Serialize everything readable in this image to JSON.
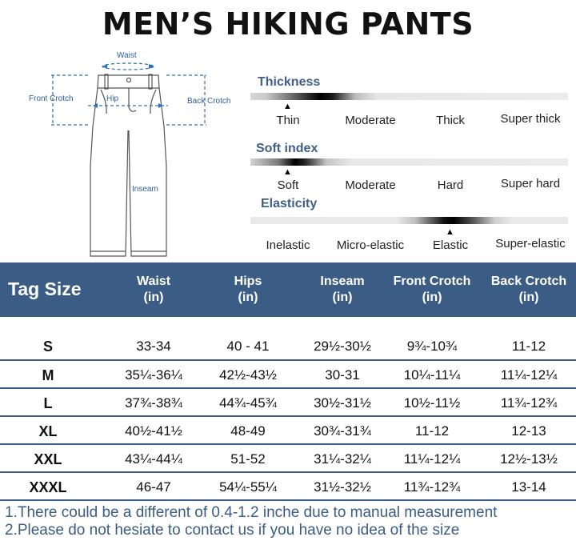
{
  "title": "MEN’S HIKING PANTS",
  "diagram": {
    "waist": "Waist",
    "front_crotch": "Front Crotch",
    "hip": "Hip",
    "back_crotch": "Back Crotch",
    "inseam": "Inseam"
  },
  "scales": {
    "thickness": {
      "title": "Thickness",
      "options": [
        "Thin",
        "Moderate",
        "Thick",
        "Super thick"
      ],
      "selected": "Thin"
    },
    "soft_index": {
      "title": "Soft index",
      "options": [
        "Soft",
        "Moderate",
        "Hard",
        "Super hard"
      ],
      "selected": "Soft"
    },
    "elasticity": {
      "title": "Elasticity",
      "options": [
        "Inelastic",
        "Micro-elastic",
        "Elastic",
        "Super-elastic"
      ],
      "selected": "Elastic"
    }
  },
  "table": {
    "tag_header": "Tag Size",
    "columns": [
      {
        "name": "Waist",
        "unit": "(in)"
      },
      {
        "name": "Hips",
        "unit": "(in)"
      },
      {
        "name": "Inseam",
        "unit": "(in)"
      },
      {
        "name": "Front Crotch",
        "unit": "(in)"
      },
      {
        "name": "Back Crotch",
        "unit": "(in)"
      }
    ],
    "rows": [
      {
        "size": "S",
        "values": [
          "33-34",
          "40 - 41",
          "29½-30½",
          "9¾-10¾",
          "11-12"
        ]
      },
      {
        "size": "M",
        "values": [
          "35¼-36¼",
          "42½-43½",
          "30-31",
          "10¼-11¼",
          "11¼-12¼"
        ]
      },
      {
        "size": "L",
        "values": [
          "37¾-38¾",
          "44¾-45¾",
          "30½-31½",
          "10½-11½",
          "11¾-12¾"
        ]
      },
      {
        "size": "XL",
        "values": [
          "40½-41½",
          "48-49",
          "30¾-31¾",
          "11-12",
          "12-13"
        ]
      },
      {
        "size": "XXL",
        "values": [
          "43¼-44¼",
          "51-52",
          "31¼-32¼",
          "11¼-12¼",
          "12½-13½"
        ]
      },
      {
        "size": "XXXL",
        "values": [
          "46-47",
          "54¼-55¼",
          "31½-32½",
          "11¾-12¾",
          "13-14"
        ]
      }
    ]
  },
  "notes": [
    "1.There could be a different of 0.4-1.2 inche due to manual measurement",
    "2.Please do not hesiate to contact us if you have no idea of the size"
  ],
  "colors": {
    "header_bg": "#3b5d85",
    "accent_blue": "#2f5d9a",
    "scale_title": "#3f5f86"
  }
}
